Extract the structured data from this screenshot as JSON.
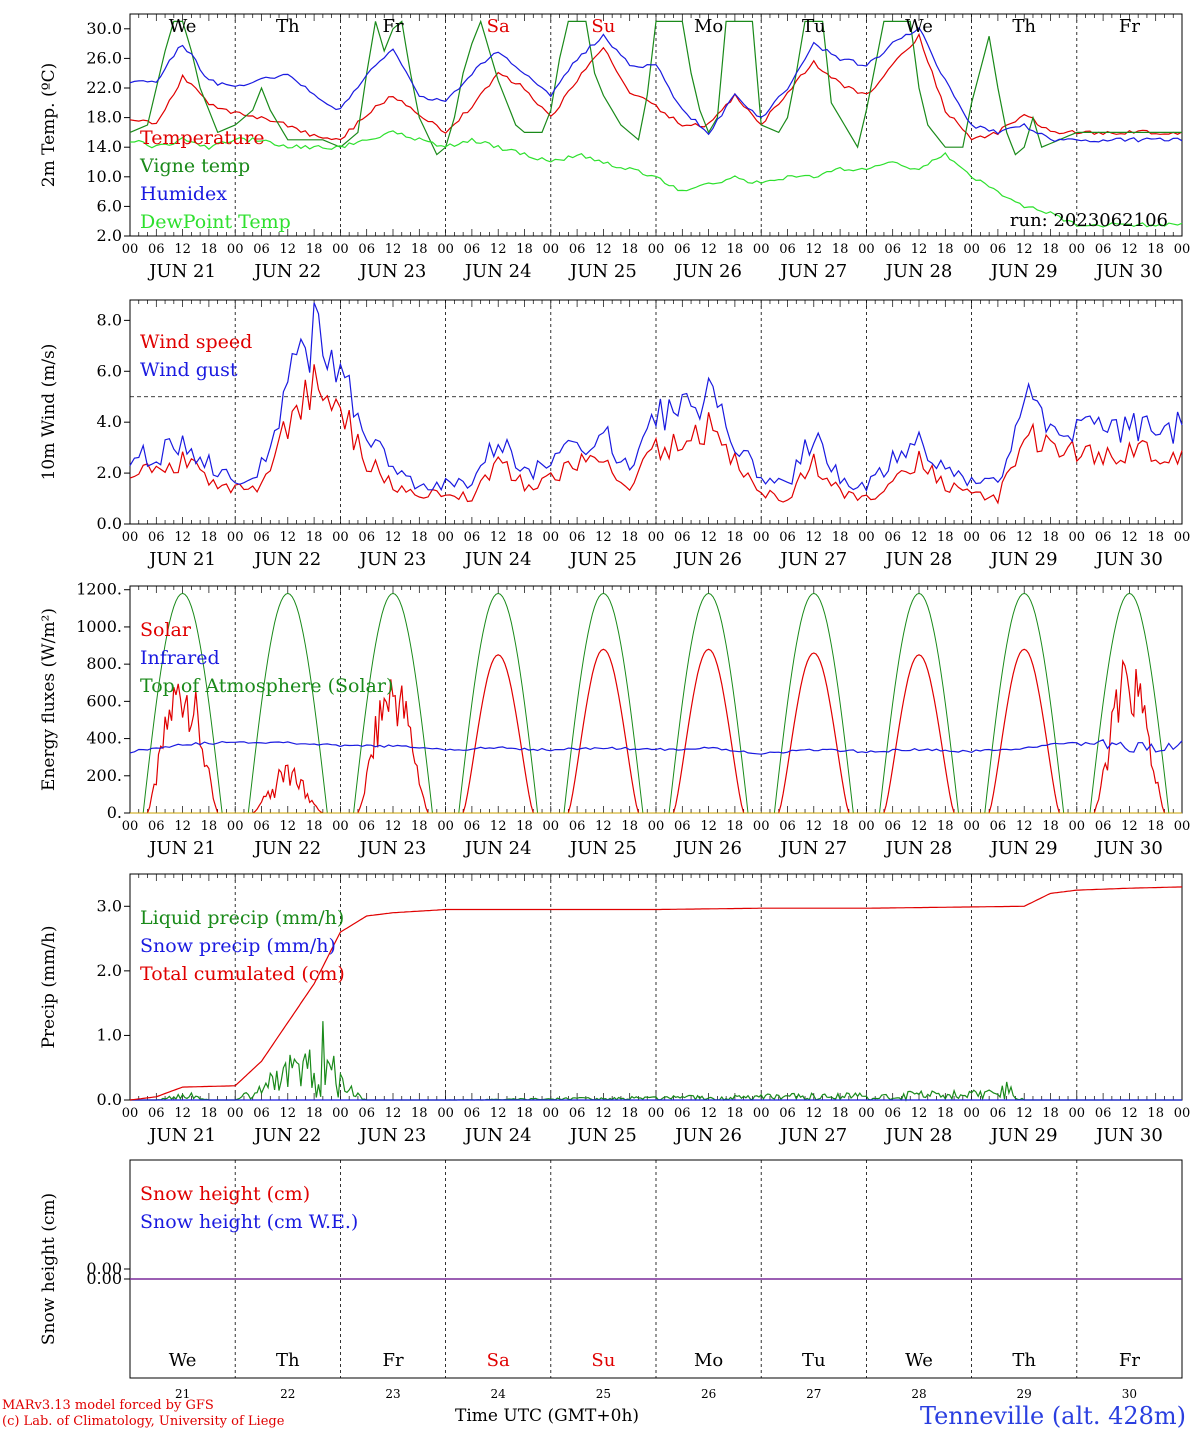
{
  "run_label": "run: 2023062106",
  "footer": {
    "model": "MARv3.13 model forced by GFS",
    "credit": "(c) Lab. of Climatology, University of Liege",
    "x_axis_title": "Time UTC (GMT+0h)",
    "station": "Tenneville (alt. 428m)"
  },
  "day_labels": [
    "JUN 21",
    "JUN 22",
    "JUN 23",
    "JUN 24",
    "JUN 25",
    "JUN 26",
    "JUN 27",
    "JUN 28",
    "JUN 29",
    "JUN 30"
  ],
  "weekdays": [
    "We",
    "Th",
    "Fr",
    "Sa",
    "Su",
    "Mo",
    "Tu",
    "We",
    "Th",
    "Fr"
  ],
  "weekend_color": "#e00000",
  "bottom_day_numbers": [
    "21",
    "22",
    "23",
    "24",
    "25",
    "26",
    "27",
    "28",
    "29",
    "30"
  ],
  "hour_ticks": [
    "00",
    "06",
    "12",
    "18"
  ],
  "last_hour_tick": "00",
  "chart_data": [
    {
      "type": "line",
      "id": "temperature",
      "ylabel": "2m Temp. (ºC)",
      "ylim": [
        2,
        32
      ],
      "yticks": [
        "2.0",
        "6.0",
        "10.0",
        "14.0",
        "18.0",
        "22.0",
        "26.0",
        "30.0"
      ],
      "x_unit": "hours since JUN 21 00 UTC",
      "series": [
        {
          "name": "Temperature",
          "color": "#e00000",
          "x": [
            0,
            6,
            12,
            18,
            24,
            30,
            36,
            42,
            48,
            54,
            60,
            66,
            72,
            78,
            84,
            90,
            96,
            102,
            108,
            114,
            120,
            126,
            132,
            138,
            144,
            150,
            156,
            162,
            168,
            174,
            180,
            186,
            192,
            198,
            204,
            210,
            216,
            222,
            228,
            234,
            240
          ],
          "y": [
            18,
            17,
            23.5,
            20,
            18.5,
            18,
            17,
            15.5,
            15,
            18.5,
            21,
            18.5,
            16,
            19.5,
            24,
            22,
            18,
            23,
            27.5,
            21.5,
            19.5,
            17,
            17,
            21,
            17,
            21.5,
            25.5,
            22.5,
            21,
            25,
            29,
            19,
            15,
            16,
            18.5,
            16,
            16,
            16,
            16,
            16,
            16
          ]
        },
        {
          "name": "Vigne temp",
          "color": "#1a8a1a",
          "x": [
            0,
            4,
            8,
            10,
            12,
            14,
            16,
            20,
            24,
            28,
            30,
            32,
            34,
            36,
            40,
            44,
            48,
            52,
            54,
            56,
            58,
            60,
            62,
            64,
            66,
            70,
            72,
            74,
            76,
            78,
            80,
            84,
            88,
            90,
            94,
            96,
            98,
            100,
            104,
            106,
            108,
            110,
            112,
            116,
            118,
            120,
            124,
            126,
            128,
            130,
            132,
            134,
            136,
            140,
            142,
            144,
            148,
            150,
            152,
            154,
            156,
            158,
            160,
            164,
            166,
            168,
            172,
            174,
            176,
            178,
            180,
            182,
            186,
            190,
            192,
            196,
            198,
            200,
            202,
            204,
            206,
            208,
            212,
            216
          ],
          "y": [
            16,
            17,
            27,
            31,
            31,
            27,
            22,
            16,
            17,
            19,
            22,
            19,
            17,
            15,
            15,
            15,
            14,
            16,
            24,
            31,
            27,
            30,
            31,
            24,
            18,
            13,
            14,
            18,
            24,
            28,
            31,
            23,
            17,
            16,
            16,
            19,
            26,
            31,
            31,
            24,
            21,
            19,
            17,
            15,
            21,
            31,
            31,
            31,
            24,
            19,
            16,
            18,
            31,
            31,
            31,
            17,
            16,
            18,
            24,
            31,
            31,
            31,
            20,
            16,
            14,
            19,
            31,
            31,
            31,
            31,
            22,
            17,
            14,
            14,
            20,
            29,
            22,
            16,
            13,
            14,
            18,
            14,
            15,
            16
          ]
        },
        {
          "name": "Humidex",
          "color": "#1a1ae0",
          "x": [
            0,
            6,
            12,
            18,
            24,
            30,
            36,
            42,
            48,
            54,
            60,
            66,
            72,
            78,
            84,
            90,
            96,
            102,
            108,
            114,
            120,
            126,
            132,
            138,
            144,
            150,
            156,
            162,
            168,
            174,
            180,
            186,
            192,
            198,
            204,
            210,
            216
          ],
          "y": [
            23,
            23,
            28,
            23,
            22,
            23,
            24,
            21,
            19,
            24,
            27,
            21,
            20,
            24,
            27,
            24,
            21,
            26,
            29,
            25,
            25,
            19,
            16,
            21,
            18,
            22,
            28,
            26,
            25,
            28,
            30,
            23,
            17,
            16,
            17,
            15,
            15
          ]
        },
        {
          "name": "DewPoint Temp",
          "color": "#2ee02e",
          "x": [
            0,
            6,
            12,
            18,
            24,
            30,
            36,
            42,
            48,
            54,
            60,
            66,
            72,
            78,
            84,
            90,
            96,
            102,
            108,
            114,
            120,
            126,
            132,
            138,
            144,
            150,
            156,
            162,
            168,
            174,
            180,
            186,
            192,
            198,
            204,
            210,
            216
          ],
          "y": [
            15,
            14,
            15,
            14,
            15,
            15,
            14,
            14,
            14,
            15,
            16,
            15,
            14,
            15,
            14,
            13,
            12,
            13,
            12,
            11,
            10,
            8,
            9,
            10,
            9,
            10,
            10,
            11,
            11,
            12,
            11,
            13,
            10,
            8,
            6,
            5,
            3.5
          ]
        }
      ]
    },
    {
      "type": "line",
      "id": "wind",
      "ylabel": "10m Wind (m/s)",
      "ylim": [
        0,
        8.8
      ],
      "yticks": [
        "0.0",
        "2.0",
        "4.0",
        "6.0",
        "8.0"
      ],
      "reference_line": 5,
      "series": [
        {
          "name": "Wind speed",
          "color": "#e00000",
          "x": [
            0,
            6,
            12,
            18,
            24,
            30,
            36,
            42,
            48,
            54,
            60,
            66,
            72,
            78,
            84,
            90,
            96,
            102,
            108,
            114,
            120,
            126,
            132,
            138,
            144,
            150,
            156,
            162,
            168,
            174,
            180,
            186,
            192,
            198,
            204,
            210,
            216
          ],
          "y": [
            2.2,
            2.0,
            2.5,
            1.8,
            1.3,
            1.5,
            4.0,
            5.5,
            4.5,
            2.5,
            1.5,
            1.2,
            1.2,
            1.0,
            2.5,
            1.5,
            1.8,
            2.3,
            2.5,
            1.5,
            3.0,
            3.2,
            3.8,
            2.5,
            1.2,
            1.0,
            2.5,
            1.2,
            1.0,
            1.5,
            2.5,
            1.5,
            1.2,
            1.0,
            3.5,
            3.0,
            2.8
          ]
        },
        {
          "name": "Wind gust",
          "color": "#1a1ae0",
          "x": [
            0,
            6,
            12,
            18,
            24,
            30,
            36,
            42,
            48,
            54,
            60,
            66,
            72,
            78,
            84,
            90,
            96,
            102,
            108,
            114,
            120,
            126,
            132,
            138,
            144,
            150,
            156,
            162,
            168,
            174,
            180,
            186,
            192,
            198,
            204,
            210,
            216
          ],
          "y": [
            2.8,
            2.6,
            3.3,
            2.3,
            1.8,
            2.3,
            5.5,
            7.5,
            6.0,
            3.5,
            2.0,
            1.6,
            1.6,
            1.5,
            3.5,
            2.0,
            2.4,
            3.0,
            3.5,
            2.0,
            4.2,
            4.5,
            5.0,
            3.2,
            1.8,
            1.5,
            3.5,
            1.8,
            1.4,
            2.5,
            3.5,
            2.0,
            1.8,
            1.5,
            5.0,
            4.0,
            3.8
          ]
        }
      ]
    },
    {
      "type": "line",
      "id": "energy",
      "ylabel": "Energy fluxes (W/m²)",
      "ylim": [
        0,
        1220
      ],
      "yticks": [
        "0.",
        "200.",
        "400.",
        "600.",
        "800.",
        "1000.",
        "1200."
      ],
      "solar_peaks": [
        840,
        260,
        820,
        850,
        880,
        880,
        860,
        850,
        880,
        880
      ],
      "toa_peak": 1180,
      "series": [
        {
          "name": "Solar",
          "color": "#e00000",
          "daily_peak": [
            840,
            260,
            820,
            850,
            880,
            880,
            860,
            850,
            880,
            880
          ]
        },
        {
          "name": "Infrared",
          "color": "#1a1ae0",
          "x": [
            0,
            12,
            24,
            36,
            48,
            60,
            72,
            84,
            96,
            108,
            120,
            132,
            144,
            156,
            168,
            180,
            192,
            204,
            216,
            228,
            240
          ],
          "y": [
            330,
            370,
            380,
            380,
            360,
            360,
            340,
            350,
            340,
            350,
            340,
            350,
            320,
            340,
            330,
            340,
            330,
            350,
            380,
            350,
            360
          ]
        },
        {
          "name": "Top of Atmosphere (Solar)",
          "color": "#1a8a1a",
          "daily_peak": 1180
        }
      ]
    },
    {
      "type": "line",
      "id": "precip",
      "ylabel": "Precip (mm/h)",
      "ylim": [
        0,
        3.5
      ],
      "yticks": [
        "0.0",
        "1.0",
        "2.0",
        "3.0"
      ],
      "series": [
        {
          "name": "Liquid precip (mm/h)",
          "color": "#1a8a1a",
          "x": [
            0,
            6,
            10,
            14,
            18,
            24,
            30,
            34,
            38,
            42,
            44,
            46,
            48,
            50,
            52,
            54,
            72,
            198,
            200,
            202,
            204,
            240
          ],
          "y": [
            0,
            0,
            0.05,
            0.08,
            0,
            0,
            0.2,
            0.35,
            0.5,
            0.6,
            0.8,
            0.5,
            0.3,
            0.2,
            0.1,
            0,
            0,
            0.1,
            0.2,
            0.1,
            0,
            0
          ]
        },
        {
          "name": "Snow precip (mm/h)",
          "color": "#1a1ae0",
          "x": [
            0,
            240
          ],
          "y": [
            0,
            0
          ]
        },
        {
          "name": "Total cumulated (cm)",
          "color": "#e00000",
          "x": [
            0,
            6,
            12,
            24,
            30,
            36,
            42,
            48,
            54,
            60,
            72,
            96,
            120,
            144,
            168,
            192,
            204,
            210,
            216,
            228,
            240
          ],
          "y": [
            0,
            0.05,
            0.2,
            0.22,
            0.6,
            1.2,
            1.8,
            2.6,
            2.85,
            2.9,
            2.95,
            2.95,
            2.95,
            2.97,
            2.97,
            2.99,
            3.0,
            3.2,
            3.25,
            3.28,
            3.3
          ]
        }
      ]
    },
    {
      "type": "line",
      "id": "snow",
      "ylabel": "Snow height (cm)",
      "yticks": [
        "0.00"
      ],
      "series": [
        {
          "name": "Snow height (cm)",
          "color": "#e00000",
          "x": [
            0,
            240
          ],
          "y": [
            0,
            0
          ]
        },
        {
          "name": "Snow height (cm W.E.)",
          "color": "#1a1ae0",
          "x": [
            0,
            240
          ],
          "y": [
            0,
            0
          ]
        }
      ]
    }
  ]
}
